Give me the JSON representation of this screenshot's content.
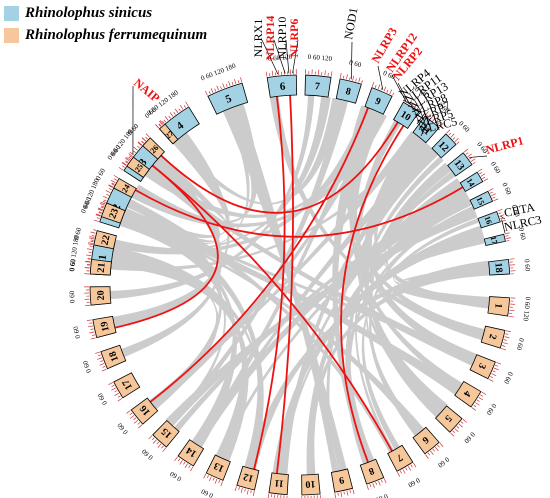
{
  "legend": {
    "species1": {
      "label": "Rhinolophus sinicus",
      "color": "#a3d2e4"
    },
    "species2": {
      "label": "Rhinolophus ferrumequinum",
      "color": "#f5c79a"
    }
  },
  "colors": {
    "links": "#cccccc",
    "highlight": "#ee1111",
    "ticks": "#d03030"
  },
  "chromosomes": {
    "sinicus": [
      "1",
      "2",
      "3",
      "4",
      "5",
      "6",
      "7",
      "8",
      "9",
      "10",
      "11",
      "12",
      "13",
      "14",
      "15",
      "16",
      "17",
      "18"
    ],
    "ferrumequinum": [
      "1",
      "2",
      "3",
      "4",
      "5",
      "6",
      "7",
      "8",
      "9",
      "10",
      "11",
      "12",
      "13",
      "14",
      "15",
      "16",
      "17",
      "18",
      "19",
      "20",
      "21",
      "22",
      "23",
      "24",
      "25",
      "26",
      "27"
    ]
  },
  "tick_labels": {
    "s1": [
      "0",
      "60",
      "120",
      "180"
    ],
    "s2": [
      "0",
      "60",
      "120",
      "180"
    ],
    "s3": [
      "0",
      "60",
      "120",
      "180"
    ],
    "s4": [
      "0",
      "60",
      "120",
      "180"
    ],
    "s5": [
      "0",
      "60",
      "120",
      "180"
    ],
    "s6": [
      "0",
      "60",
      "120"
    ],
    "s7": [
      "0",
      "60",
      "120"
    ],
    "short": [
      "0",
      "60"
    ],
    "f1": [
      "0",
      "60",
      "120"
    ]
  },
  "genes": {
    "NAIP": {
      "label": "NAIP",
      "highlight": true
    },
    "NLRX1": {
      "label": "NLRX1",
      "highlight": false
    },
    "NLRP14": {
      "label": "NLRP14",
      "highlight": true
    },
    "NLRP10": {
      "label": "NLRP10",
      "highlight": false
    },
    "NLRP6": {
      "label": "NLRP6",
      "highlight": true
    },
    "NOD1": {
      "label": "NOD1",
      "highlight": false
    },
    "NLRP3": {
      "label": "NLRP3",
      "highlight": true
    },
    "NLRP12": {
      "label": "NLRP12",
      "highlight": true
    },
    "NLRP2": {
      "label": "NLRP2",
      "highlight": true
    },
    "NLRP4": {
      "label": "NLRP4",
      "highlight": false
    },
    "NLRP11": {
      "label": "NLRP11",
      "highlight": false
    },
    "NLRP13": {
      "label": "NLRP13",
      "highlight": false
    },
    "NLRP8": {
      "label": "NLRP8",
      "highlight": false
    },
    "NLRP7": {
      "label": "NLRP7",
      "highlight": false
    },
    "NLRP5": {
      "label": "NLRP5",
      "highlight": false
    },
    "NLRC5": {
      "label": "NLRC5",
      "highlight": false
    },
    "NLRP1": {
      "label": "NLRP1",
      "highlight": true
    },
    "CIITA": {
      "label": "CIITA",
      "highlight": false
    },
    "NLRC3": {
      "label": "NLRC3",
      "highlight": false
    }
  }
}
